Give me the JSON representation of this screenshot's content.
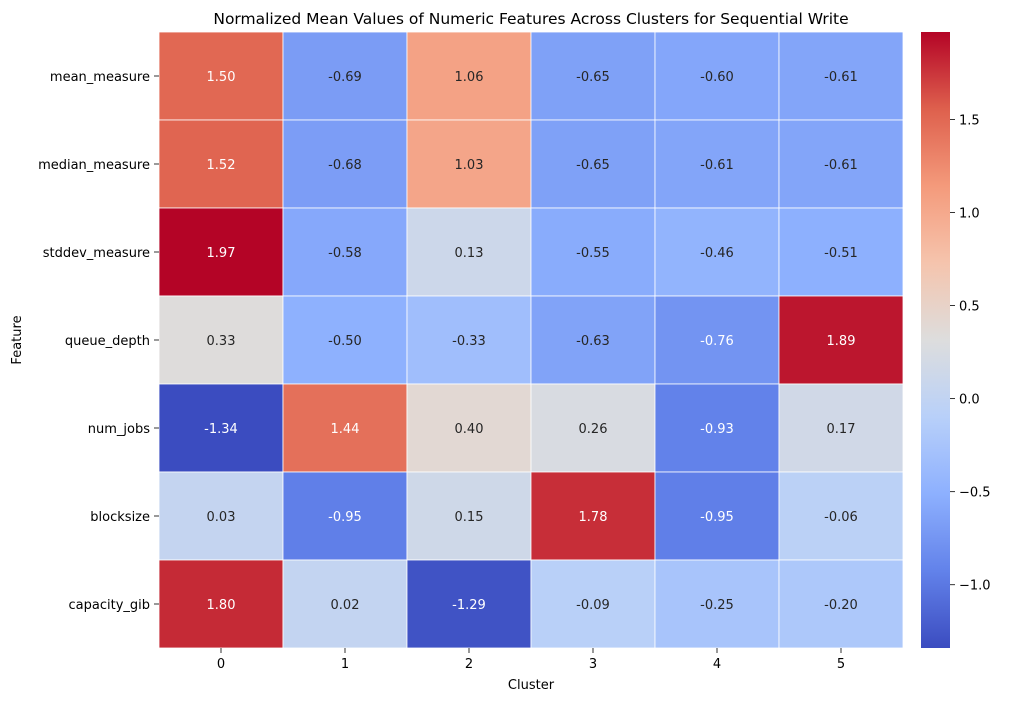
{
  "chart_data": {
    "type": "heatmap",
    "title": "Normalized Mean Values of Numeric Features Across Clusters for Sequential Write",
    "xlabel": "Cluster",
    "ylabel": "Feature",
    "x_categories": [
      "0",
      "1",
      "2",
      "3",
      "4",
      "5"
    ],
    "y_categories": [
      "mean_measure",
      "median_measure",
      "stddev_measure",
      "queue_depth",
      "num_jobs",
      "blocksize",
      "capacity_gib"
    ],
    "values": [
      [
        1.5,
        -0.69,
        1.06,
        -0.65,
        -0.6,
        -0.61
      ],
      [
        1.52,
        -0.68,
        1.03,
        -0.65,
        -0.61,
        -0.61
      ],
      [
        1.97,
        -0.58,
        0.13,
        -0.55,
        -0.46,
        -0.51
      ],
      [
        0.33,
        -0.5,
        -0.33,
        -0.63,
        -0.76,
        1.89
      ],
      [
        -1.34,
        1.44,
        0.4,
        0.26,
        -0.93,
        0.17
      ],
      [
        0.03,
        -0.95,
        0.15,
        1.78,
        -0.95,
        -0.06
      ],
      [
        1.8,
        0.02,
        -1.29,
        -0.09,
        -0.25,
        -0.2
      ]
    ],
    "value_labels": [
      [
        "1.50",
        "-0.69",
        "1.06",
        "-0.65",
        "-0.60",
        "-0.61"
      ],
      [
        "1.52",
        "-0.68",
        "1.03",
        "-0.65",
        "-0.61",
        "-0.61"
      ],
      [
        "1.97",
        "-0.58",
        "0.13",
        "-0.55",
        "-0.46",
        "-0.51"
      ],
      [
        "0.33",
        "-0.50",
        "-0.33",
        "-0.63",
        "-0.76",
        "1.89"
      ],
      [
        "-1.34",
        "1.44",
        "0.40",
        "0.26",
        "-0.93",
        "0.17"
      ],
      [
        "0.03",
        "-0.95",
        "0.15",
        "1.78",
        "-0.95",
        "-0.06"
      ],
      [
        "1.80",
        "0.02",
        "-1.29",
        "-0.09",
        "-0.25",
        "-0.20"
      ]
    ],
    "colormap": "coolwarm",
    "vmin": -1.34,
    "vmax": 1.97,
    "colorbar": {
      "ticks": [
        1.5,
        1.0,
        0.5,
        0.0,
        -0.5,
        -1.0
      ],
      "tick_labels": [
        "1.5",
        "1.0",
        "0.5",
        "0.0",
        "−0.5",
        "−1.0"
      ]
    },
    "grid": false,
    "cell_borders": "white"
  }
}
